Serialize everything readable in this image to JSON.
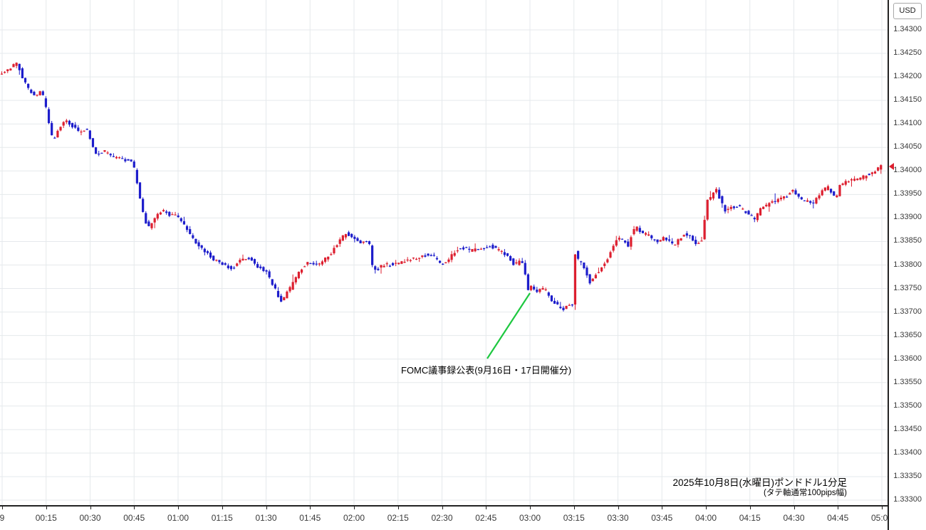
{
  "currency_badge": "USD",
  "chart_data": {
    "type": "candlestick",
    "title": "2025年10月8日(水曜日)ポンドドル1分足",
    "axis_note": "(タテ軸通常100pips幅)",
    "timeframe_minutes": 1,
    "ylim": [
      1.333,
      1.343
    ],
    "y_ticks": [
      "1.34300",
      "1.34250",
      "1.34200",
      "1.34150",
      "1.34100",
      "1.34050",
      "1.34000",
      "1.33950",
      "1.33900",
      "1.33850",
      "1.33800",
      "1.33750",
      "1.33700",
      "1.33650",
      "1.33600",
      "1.33550",
      "1.33500",
      "1.33450",
      "1.33400",
      "1.33350",
      "1.33300"
    ],
    "x_ticks": [
      "9",
      "00:15",
      "00:30",
      "00:45",
      "01:00",
      "01:15",
      "01:30",
      "01:45",
      "02:00",
      "02:15",
      "02:30",
      "02:45",
      "03:00",
      "03:15",
      "03:30",
      "03:45",
      "04:00",
      "04:15",
      "04:30",
      "04:45",
      "05:00"
    ],
    "candle_count": 300,
    "up_color": "#dd1f2f",
    "down_color": "#1d1dcb",
    "grid_color": "#e5e9ec",
    "last_price": 1.3401,
    "annotation": {
      "text": "FOMC議事録公表(9月16日・17日開催分)",
      "line_color": "#1ec840",
      "points_to_time": "03:00"
    },
    "price_path_waypoints": [
      [
        2,
        1.34205
      ],
      [
        10,
        1.34212
      ],
      [
        18,
        1.34222
      ],
      [
        26,
        1.3423
      ],
      [
        34,
        1.34195
      ],
      [
        44,
        1.34168
      ],
      [
        52,
        1.34155
      ],
      [
        60,
        1.34172
      ],
      [
        68,
        1.34125
      ],
      [
        76,
        1.34062
      ],
      [
        84,
        1.34088
      ],
      [
        92,
        1.34108
      ],
      [
        102,
        1.34098
      ],
      [
        112,
        1.34086
      ],
      [
        124,
        1.34088
      ],
      [
        136,
        1.34036
      ],
      [
        148,
        1.34042
      ],
      [
        160,
        1.34028
      ],
      [
        172,
        1.34026
      ],
      [
        182,
        1.34022
      ],
      [
        188,
        1.34018
      ],
      [
        193,
        1.33988
      ],
      [
        199,
        1.33934
      ],
      [
        206,
        1.33892
      ],
      [
        212,
        1.33878
      ],
      [
        220,
        1.33902
      ],
      [
        230,
        1.33918
      ],
      [
        240,
        1.33905
      ],
      [
        250,
        1.33908
      ],
      [
        260,
        1.33884
      ],
      [
        272,
        1.33856
      ],
      [
        285,
        1.33834
      ],
      [
        300,
        1.33815
      ],
      [
        315,
        1.338
      ],
      [
        328,
        1.3379
      ],
      [
        340,
        1.33812
      ],
      [
        352,
        1.33815
      ],
      [
        364,
        1.33796
      ],
      [
        376,
        1.33787
      ],
      [
        388,
        1.33748
      ],
      [
        396,
        1.33724
      ],
      [
        404,
        1.33738
      ],
      [
        412,
        1.33758
      ],
      [
        423,
        1.3379
      ],
      [
        434,
        1.33806
      ],
      [
        446,
        1.338
      ],
      [
        457,
        1.3381
      ],
      [
        468,
        1.33828
      ],
      [
        478,
        1.3385
      ],
      [
        487,
        1.33868
      ],
      [
        497,
        1.33858
      ],
      [
        507,
        1.33846
      ],
      [
        516,
        1.33852
      ],
      [
        520,
        1.33848
      ],
      [
        525,
        1.33796
      ],
      [
        531,
        1.3379
      ],
      [
        540,
        1.338
      ],
      [
        553,
        1.33801
      ],
      [
        566,
        1.33806
      ],
      [
        580,
        1.33813
      ],
      [
        594,
        1.3382
      ],
      [
        608,
        1.33822
      ],
      [
        622,
        1.33801
      ],
      [
        630,
        1.33808
      ],
      [
        638,
        1.33826
      ],
      [
        650,
        1.33838
      ],
      [
        662,
        1.33831
      ],
      [
        674,
        1.33835
      ],
      [
        688,
        1.33841
      ],
      [
        702,
        1.33832
      ],
      [
        714,
        1.3382
      ],
      [
        724,
        1.338
      ],
      [
        733,
        1.33808
      ],
      [
        737,
        1.33805
      ],
      [
        743,
        1.33748
      ],
      [
        749,
        1.33754
      ],
      [
        757,
        1.33744
      ],
      [
        766,
        1.33752
      ],
      [
        774,
        1.33728
      ],
      [
        782,
        1.33718
      ],
      [
        790,
        1.33704
      ],
      [
        797,
        1.33712
      ],
      [
        803,
        1.3372
      ],
      [
        806,
        1.33716
      ],
      [
        808,
        1.33758
      ],
      [
        810,
        1.33845
      ],
      [
        813,
        1.33812
      ],
      [
        818,
        1.33804
      ],
      [
        824,
        1.33788
      ],
      [
        830,
        1.33764
      ],
      [
        836,
        1.33778
      ],
      [
        843,
        1.33788
      ],
      [
        850,
        1.338
      ],
      [
        857,
        1.33822
      ],
      [
        864,
        1.33845
      ],
      [
        871,
        1.33858
      ],
      [
        878,
        1.3385
      ],
      [
        884,
        1.33842
      ],
      [
        890,
        1.33872
      ],
      [
        896,
        1.3388
      ],
      [
        903,
        1.33868
      ],
      [
        911,
        1.33864
      ],
      [
        919,
        1.33854
      ],
      [
        927,
        1.3385
      ],
      [
        934,
        1.3386
      ],
      [
        941,
        1.3385
      ],
      [
        948,
        1.33842
      ],
      [
        956,
        1.33856
      ],
      [
        964,
        1.33868
      ],
      [
        972,
        1.3386
      ],
      [
        979,
        1.33844
      ],
      [
        986,
        1.3385
      ],
      [
        989,
        1.33856
      ],
      [
        993,
        1.33932
      ],
      [
        998,
        1.33942
      ],
      [
        1004,
        1.33952
      ],
      [
        1008,
        1.33962
      ],
      [
        1013,
        1.33938
      ],
      [
        1020,
        1.33916
      ],
      [
        1028,
        1.33922
      ],
      [
        1037,
        1.33926
      ],
      [
        1046,
        1.33916
      ],
      [
        1055,
        1.33906
      ],
      [
        1062,
        1.33898
      ],
      [
        1070,
        1.3392
      ],
      [
        1080,
        1.33928
      ],
      [
        1090,
        1.33936
      ],
      [
        1100,
        1.33941
      ],
      [
        1108,
        1.33948
      ],
      [
        1114,
        1.33958
      ],
      [
        1120,
        1.3395
      ],
      [
        1128,
        1.3394
      ],
      [
        1136,
        1.33934
      ],
      [
        1142,
        1.3393
      ],
      [
        1150,
        1.33946
      ],
      [
        1158,
        1.3396
      ],
      [
        1164,
        1.33965
      ],
      [
        1170,
        1.33955
      ],
      [
        1175,
        1.3394
      ],
      [
        1181,
        1.33968
      ],
      [
        1188,
        1.33976
      ],
      [
        1196,
        1.33983
      ],
      [
        1204,
        1.33981
      ],
      [
        1212,
        1.33986
      ],
      [
        1220,
        1.33992
      ],
      [
        1228,
        1.33998
      ],
      [
        1234,
        1.34003
      ],
      [
        1241,
        1.34016
      ]
    ]
  }
}
